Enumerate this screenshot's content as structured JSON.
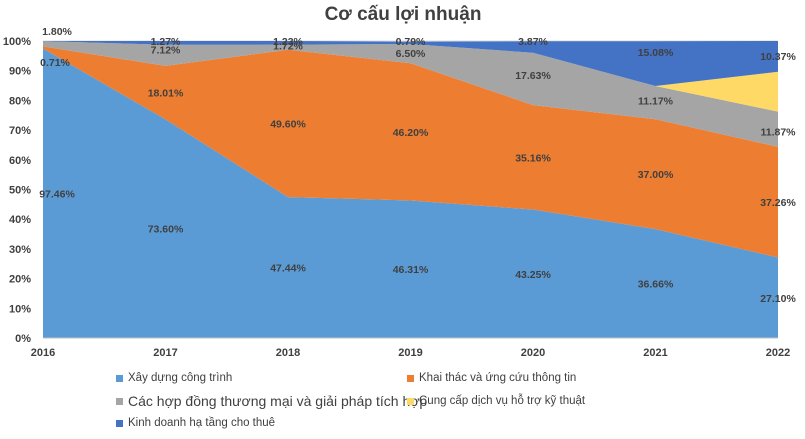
{
  "chart_data": {
    "type": "area",
    "title": "Cơ cấu lợi nhuận",
    "x": [
      "2016",
      "2017",
      "2018",
      "2019",
      "2020",
      "2021",
      "2022"
    ],
    "ylim": [
      0,
      100
    ],
    "yticks": [
      "0%",
      "10%",
      "20%",
      "30%",
      "40%",
      "50%",
      "60%",
      "70%",
      "80%",
      "90%",
      "100%"
    ],
    "legend_position": "bottom",
    "series": [
      {
        "name": "Xây dựng công trình",
        "color": "#5b9bd5",
        "values": [
          97.46,
          73.6,
          47.44,
          46.31,
          43.25,
          36.66,
          27.1
        ],
        "labels": [
          "97.46%",
          "73.60%",
          "47.44%",
          "46.31%",
          "43.25%",
          "36.66%",
          "27.10%"
        ]
      },
      {
        "name": "Khai thác và ứng cứu thông tin",
        "color": "#ed7d31",
        "values": [
          0.71,
          18.01,
          49.6,
          46.2,
          35.16,
          37.0,
          37.26
        ],
        "labels": [
          "0.71%",
          "18.01%",
          "49.60%",
          "46.20%",
          "35.16%",
          "37.00%",
          "37.26%"
        ]
      },
      {
        "name": "Các hợp đồng thương mại và giải pháp tích hợp",
        "color": "#a5a5a5",
        "values": [
          1.8,
          7.12,
          1.72,
          6.5,
          17.63,
          11.17,
          11.87
        ],
        "labels": [
          "1.80%",
          "7.12%",
          "1.72%",
          "6.50%",
          "17.63%",
          "11.17%",
          "11.87%"
        ]
      },
      {
        "name": "Cung cấp dịch vụ hỗ trợ kỹ thuật",
        "color": "#ffd966",
        "values": [
          0,
          0,
          0,
          0,
          0,
          0,
          13.4
        ],
        "labels": [
          "",
          "",
          "",
          "",
          "",
          "",
          ""
        ]
      },
      {
        "name": "Kinh doanh hạ tầng cho thuê",
        "color": "#4472c4",
        "values": [
          0.03,
          1.27,
          1.23,
          0.79,
          3.87,
          15.08,
          10.37
        ],
        "labels": [
          "",
          "1.27%",
          "1.23%",
          "0.79%",
          "3.87%",
          "15.08%",
          "10.37%"
        ]
      }
    ]
  }
}
